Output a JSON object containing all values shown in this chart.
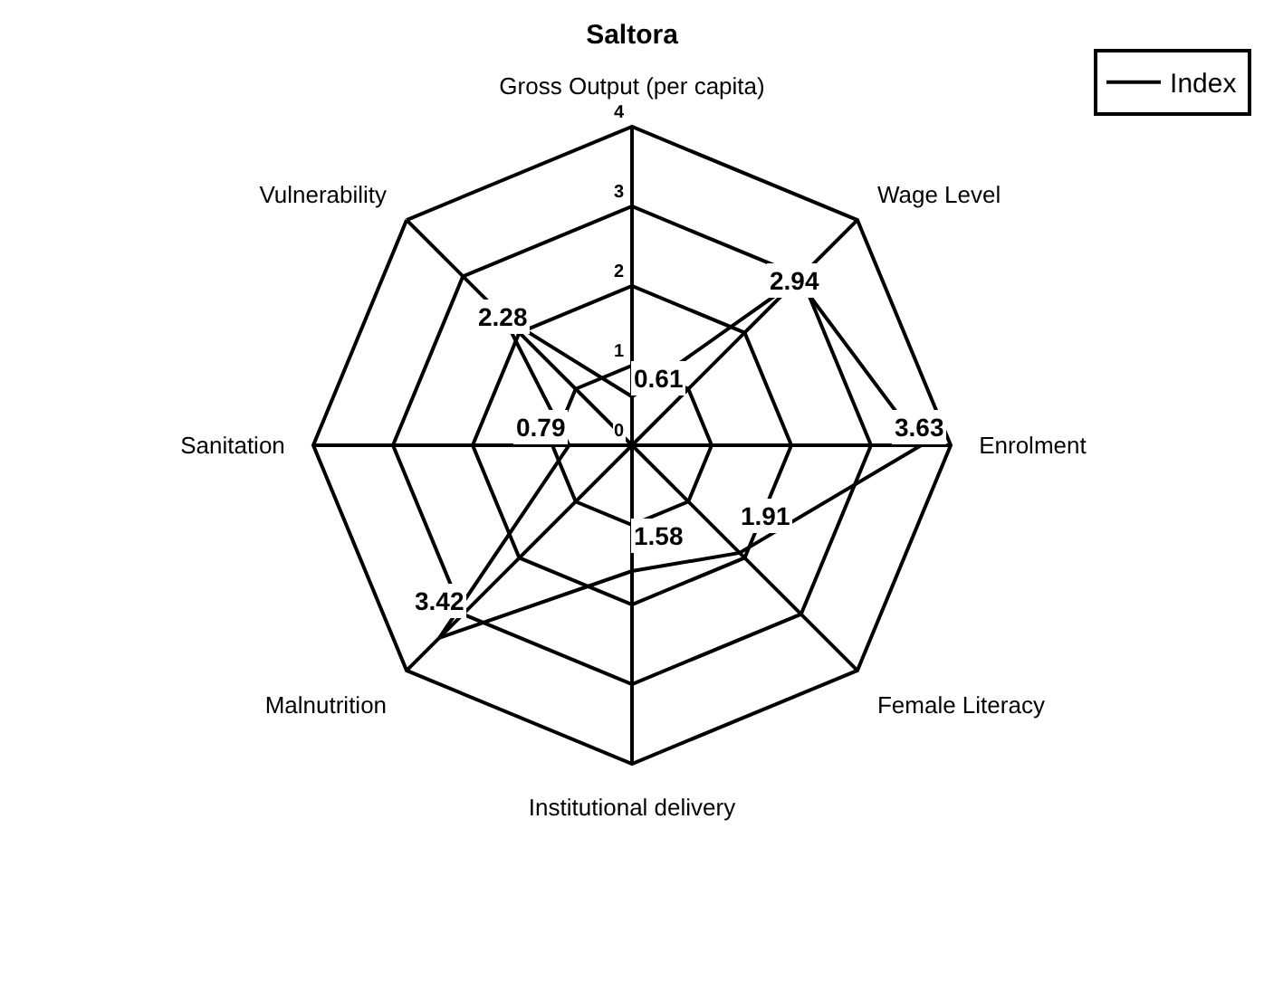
{
  "chart_data": {
    "type": "radar",
    "title": "Saltora",
    "categories": [
      "Gross Output (per capita)",
      "Wage Level",
      "Enrolment",
      "Female Literacy",
      "Institutional delivery",
      "Malnutrition",
      "Sanitation",
      "Vulnerability"
    ],
    "series": [
      {
        "name": "Index",
        "color": "#000000",
        "values": [
          0.61,
          2.94,
          3.63,
          1.91,
          1.58,
          3.42,
          0.79,
          2.28
        ]
      }
    ],
    "ylim": [
      0,
      4
    ],
    "yticks": [
      0,
      1,
      2,
      3,
      4
    ],
    "grid": true,
    "legend": "top right",
    "data_labels": true,
    "marker": "none"
  }
}
